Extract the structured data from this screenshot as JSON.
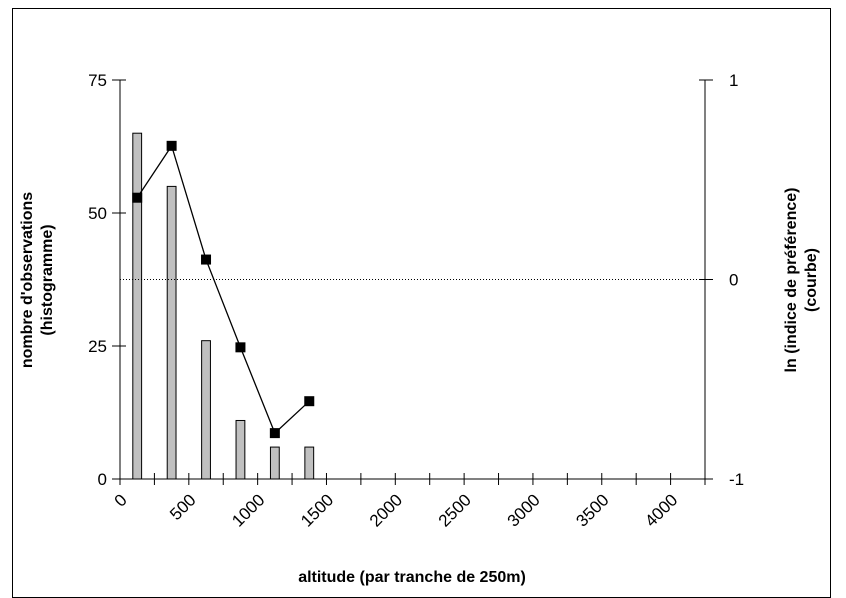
{
  "chart_data": {
    "type": "bar",
    "xlabel": "altitude (par tranche de 250m)",
    "ylabel_left_line1": "nombre d'observations",
    "ylabel_left_line2": "(histogramme)",
    "ylabel_right_line1": "ln (indice de préférence)",
    "ylabel_right_line2": "(courbe)",
    "x_ticks": [
      0,
      500,
      1000,
      1500,
      2000,
      2500,
      3000,
      3500,
      4000
    ],
    "xlim": [
      0,
      4250
    ],
    "ylim_left": [
      0,
      75
    ],
    "ylim_right": [
      -1,
      1
    ],
    "y_ticks_left": [
      0,
      25,
      50,
      75
    ],
    "y_ticks_right": [
      -1,
      0,
      1
    ],
    "reference_line": {
      "axis": "right",
      "value": 0,
      "style": "dotted"
    },
    "series": [
      {
        "type": "bar",
        "axis": "left",
        "color": "#c0c0c0",
        "x": [
          125,
          375,
          625,
          875,
          1125,
          1375
        ],
        "values": [
          65,
          55,
          26,
          11,
          6,
          6
        ]
      },
      {
        "type": "line",
        "axis": "right",
        "marker": "square",
        "color": "#000000",
        "x": [
          125,
          375,
          625,
          875,
          1125,
          1375
        ],
        "values": [
          0.41,
          0.67,
          0.1,
          -0.34,
          -0.77,
          -0.61
        ]
      }
    ]
  }
}
